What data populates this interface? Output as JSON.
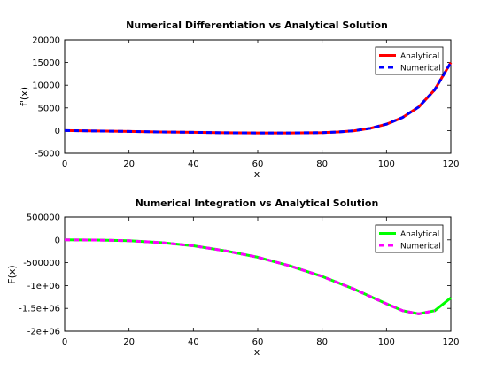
{
  "chart_data": [
    {
      "type": "line",
      "title": "Numerical Differentiation vs Analytical Solution",
      "xlabel": "x",
      "ylabel": "f'(x)",
      "xlim": [
        0,
        120
      ],
      "ylim": [
        -5000,
        20000
      ],
      "xticks": [
        "0",
        "20",
        "40",
        "60",
        "80",
        "100",
        "120"
      ],
      "yticks": [
        "-5000",
        "0",
        "5000",
        "10000",
        "15000",
        "20000"
      ],
      "legend_position": "top-right",
      "grid": false,
      "series": [
        {
          "name": "Analytical",
          "color": "#ff0000",
          "style": "solid",
          "x": [
            0,
            10,
            20,
            30,
            40,
            50,
            60,
            70,
            80,
            85,
            90,
            95,
            100,
            105,
            110,
            115,
            120
          ],
          "y": [
            0,
            -90,
            -200,
            -310,
            -400,
            -480,
            -520,
            -520,
            -450,
            -320,
            -30,
            500,
            1400,
            2900,
            5200,
            9000,
            15000
          ]
        },
        {
          "name": "Numerical",
          "color": "#0000ff",
          "style": "dashed",
          "x": [
            0,
            10,
            20,
            30,
            40,
            50,
            60,
            70,
            80,
            85,
            90,
            95,
            100,
            105,
            110,
            115,
            120
          ],
          "y": [
            0,
            -90,
            -200,
            -310,
            -400,
            -480,
            -520,
            -520,
            -450,
            -320,
            -30,
            500,
            1400,
            2900,
            5200,
            9000,
            15000
          ]
        }
      ]
    },
    {
      "type": "line",
      "title": "Numerical Integration vs Analytical Solution",
      "xlabel": "x",
      "ylabel": "F(x)",
      "xlim": [
        0,
        120
      ],
      "ylim": [
        -2000000,
        500000
      ],
      "xticks": [
        "0",
        "20",
        "40",
        "60",
        "80",
        "100",
        "120"
      ],
      "yticks": [
        "-2e+06",
        "-1.5e+06",
        "-1e+06",
        "-500000",
        "0",
        "500000"
      ],
      "legend_position": "top-right",
      "grid": false,
      "series": [
        {
          "name": "Analytical",
          "color": "#00ff00",
          "style": "solid",
          "x": [
            0,
            10,
            20,
            30,
            40,
            50,
            60,
            70,
            80,
            90,
            100,
            105,
            110,
            115,
            120
          ],
          "y": [
            0,
            -4500,
            -20000,
            -60000,
            -130000,
            -240000,
            -380000,
            -570000,
            -800000,
            -1080000,
            -1400000,
            -1550000,
            -1620000,
            -1550000,
            -1270000
          ]
        },
        {
          "name": "Numerical",
          "color": "#ff00ff",
          "style": "dashed",
          "x": [
            0,
            10,
            20,
            30,
            40,
            50,
            60,
            70,
            80,
            90,
            100,
            105,
            110,
            115
          ],
          "y": [
            0,
            -4500,
            -20000,
            -60000,
            -130000,
            -240000,
            -380000,
            -570000,
            -800000,
            -1080000,
            -1400000,
            -1550000,
            -1620000,
            -1550000
          ]
        }
      ]
    }
  ]
}
